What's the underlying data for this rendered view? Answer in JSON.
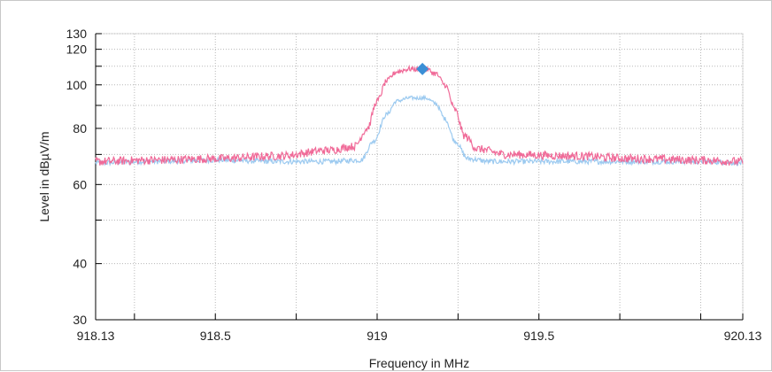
{
  "chart_data": {
    "type": "line",
    "title": "",
    "xlabel": "Frequency in MHz",
    "ylabel": "Level in dBµV/m",
    "xlim": [
      918.13,
      920.13
    ],
    "ylim": [
      30,
      130
    ],
    "x_scale": "linear",
    "y_scale": "log",
    "grid": true,
    "x_ticks": [
      918.13,
      918.5,
      919,
      919.5,
      920.13
    ],
    "x_tick_labels": [
      "918.13",
      "918.5",
      "919",
      "919.5",
      "920.13"
    ],
    "x_minor_ticks": [
      918.25,
      918.75,
      919.25,
      919.75,
      920.0
    ],
    "y_ticks": [
      30,
      40,
      60,
      80,
      100,
      120,
      130
    ],
    "y_tick_labels": [
      "30",
      "40",
      "60",
      "80",
      "100",
      "120",
      "130"
    ],
    "y_minor_ticks": [
      50,
      70,
      90,
      110
    ],
    "series": [
      {
        "color": "#f06a98",
        "x": [
          918.13,
          918.3,
          918.5,
          918.7,
          918.85,
          918.93,
          918.97,
          919.0,
          919.03,
          919.06,
          919.1,
          919.15,
          919.18,
          919.21,
          919.24,
          919.27,
          919.31,
          919.4,
          919.6,
          919.8,
          920.0,
          920.13
        ],
        "values": [
          67.5,
          68,
          68.5,
          69.5,
          71.5,
          73,
          80,
          92,
          102,
          107,
          108.5,
          108.5,
          106,
          100,
          88,
          77,
          72,
          70,
          69.5,
          68.5,
          68,
          67.5
        ],
        "noise": 1.5
      },
      {
        "color": "#9ccaf0",
        "x": [
          918.13,
          918.3,
          918.5,
          918.7,
          918.85,
          918.95,
          918.99,
          919.03,
          919.06,
          919.1,
          919.15,
          919.18,
          919.21,
          919.24,
          919.28,
          919.35,
          919.6,
          919.8,
          920.0,
          920.13
        ],
        "values": [
          67,
          67.5,
          68,
          67.5,
          67.5,
          68,
          75,
          86,
          92,
          93.5,
          93.5,
          91,
          84,
          75,
          68.5,
          67.5,
          67.5,
          67.5,
          67.5,
          67
        ],
        "noise": 0.9
      }
    ],
    "markers": [
      {
        "x": 919.14,
        "y": 108.5,
        "shape": "diamond",
        "color": "#3b8fd6"
      }
    ]
  }
}
